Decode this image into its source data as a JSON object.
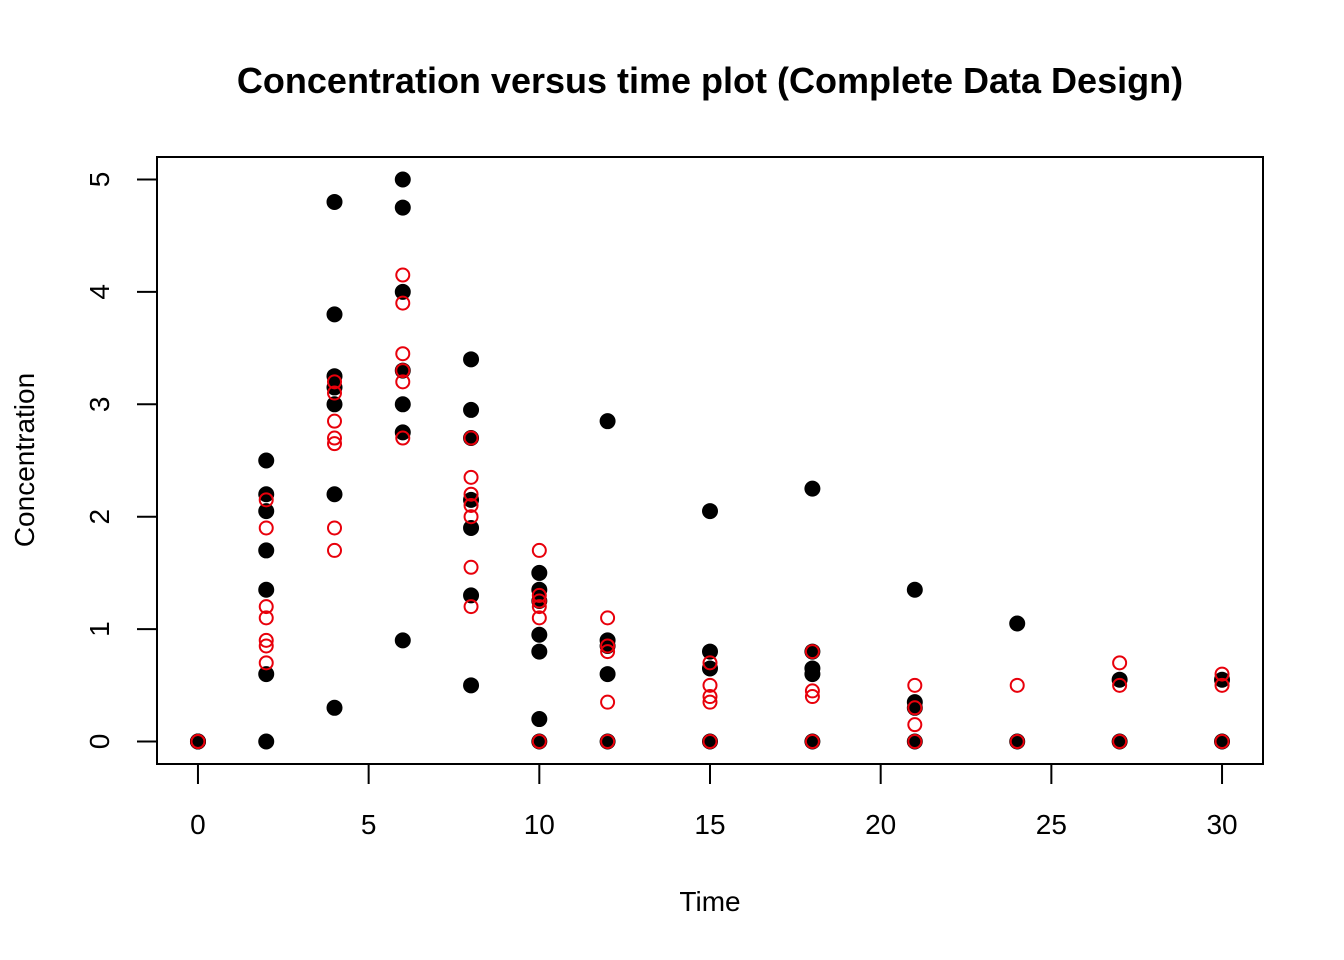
{
  "chart_data": {
    "type": "scatter",
    "title": "Concentration versus time plot (Complete Data Design)",
    "xlabel": "Time",
    "ylabel": "Concentration",
    "xlim": [
      -1.2,
      31.2
    ],
    "ylim": [
      -0.2,
      5.2
    ],
    "xticks": [
      "0",
      "5",
      "10",
      "15",
      "20",
      "25",
      "30"
    ],
    "yticks": [
      "0",
      "1",
      "2",
      "3",
      "4",
      "5"
    ],
    "grid": false,
    "legend": "none",
    "series": [
      {
        "marker": "filled-circle",
        "color": "#000000",
        "points": [
          [
            0,
            0
          ],
          [
            0,
            0
          ],
          [
            0,
            0
          ],
          [
            2,
            0
          ],
          [
            2,
            0.6
          ],
          [
            2,
            1.35
          ],
          [
            2,
            1.7
          ],
          [
            2,
            2.05
          ],
          [
            2,
            2.2
          ],
          [
            2,
            2.5
          ],
          [
            4,
            0.3
          ],
          [
            4,
            2.2
          ],
          [
            4,
            3.0
          ],
          [
            4,
            3.15
          ],
          [
            4,
            3.25
          ],
          [
            4,
            3.8
          ],
          [
            4,
            4.8
          ],
          [
            6,
            0.9
          ],
          [
            6,
            2.75
          ],
          [
            6,
            3.0
          ],
          [
            6,
            3.3
          ],
          [
            6,
            4.0
          ],
          [
            6,
            4.75
          ],
          [
            6,
            5.0
          ],
          [
            8,
            0.5
          ],
          [
            8,
            1.3
          ],
          [
            8,
            1.9
          ],
          [
            8,
            2.15
          ],
          [
            8,
            2.7
          ],
          [
            8,
            2.95
          ],
          [
            8,
            3.4
          ],
          [
            10,
            0
          ],
          [
            10,
            0.2
          ],
          [
            10,
            0.8
          ],
          [
            10,
            0.95
          ],
          [
            10,
            1.25
          ],
          [
            10,
            1.35
          ],
          [
            10,
            1.5
          ],
          [
            12,
            0
          ],
          [
            12,
            0.6
          ],
          [
            12,
            0.85
          ],
          [
            12,
            0.9
          ],
          [
            12,
            2.85
          ],
          [
            15,
            0
          ],
          [
            15,
            0.65
          ],
          [
            15,
            0.8
          ],
          [
            15,
            2.05
          ],
          [
            18,
            0
          ],
          [
            18,
            0.6
          ],
          [
            18,
            0.65
          ],
          [
            18,
            0.8
          ],
          [
            18,
            2.25
          ],
          [
            21,
            0
          ],
          [
            21,
            0.3
          ],
          [
            21,
            0.35
          ],
          [
            21,
            1.35
          ],
          [
            24,
            0
          ],
          [
            24,
            1.05
          ],
          [
            27,
            0
          ],
          [
            27,
            0.55
          ],
          [
            30,
            0
          ],
          [
            30,
            0.55
          ]
        ]
      },
      {
        "marker": "open-circle",
        "color": "#e8000b",
        "points": [
          [
            0,
            0
          ],
          [
            0,
            0
          ],
          [
            2,
            0.7
          ],
          [
            2,
            0.85
          ],
          [
            2,
            0.9
          ],
          [
            2,
            1.1
          ],
          [
            2,
            1.2
          ],
          [
            2,
            1.9
          ],
          [
            2,
            2.15
          ],
          [
            4,
            1.7
          ],
          [
            4,
            1.9
          ],
          [
            4,
            2.65
          ],
          [
            4,
            2.7
          ],
          [
            4,
            2.85
          ],
          [
            4,
            3.1
          ],
          [
            4,
            3.2
          ],
          [
            6,
            2.7
          ],
          [
            6,
            3.2
          ],
          [
            6,
            3.3
          ],
          [
            6,
            3.45
          ],
          [
            6,
            3.9
          ],
          [
            6,
            4.15
          ],
          [
            8,
            1.2
          ],
          [
            8,
            1.55
          ],
          [
            8,
            2.0
          ],
          [
            8,
            2.1
          ],
          [
            8,
            2.2
          ],
          [
            8,
            2.35
          ],
          [
            8,
            2.7
          ],
          [
            10,
            0
          ],
          [
            10,
            1.1
          ],
          [
            10,
            1.2
          ],
          [
            10,
            1.25
          ],
          [
            10,
            1.3
          ],
          [
            10,
            1.7
          ],
          [
            12,
            0
          ],
          [
            12,
            0.35
          ],
          [
            12,
            0.8
          ],
          [
            12,
            0.85
          ],
          [
            12,
            1.1
          ],
          [
            15,
            0
          ],
          [
            15,
            0.35
          ],
          [
            15,
            0.4
          ],
          [
            15,
            0.5
          ],
          [
            15,
            0.7
          ],
          [
            18,
            0
          ],
          [
            18,
            0.4
          ],
          [
            18,
            0.45
          ],
          [
            18,
            0.8
          ],
          [
            21,
            0
          ],
          [
            21,
            0.15
          ],
          [
            21,
            0.3
          ],
          [
            21,
            0.5
          ],
          [
            24,
            0
          ],
          [
            24,
            0.5
          ],
          [
            27,
            0
          ],
          [
            27,
            0.5
          ],
          [
            27,
            0.7
          ],
          [
            30,
            0
          ],
          [
            30,
            0.5
          ],
          [
            30,
            0.6
          ]
        ]
      }
    ]
  }
}
